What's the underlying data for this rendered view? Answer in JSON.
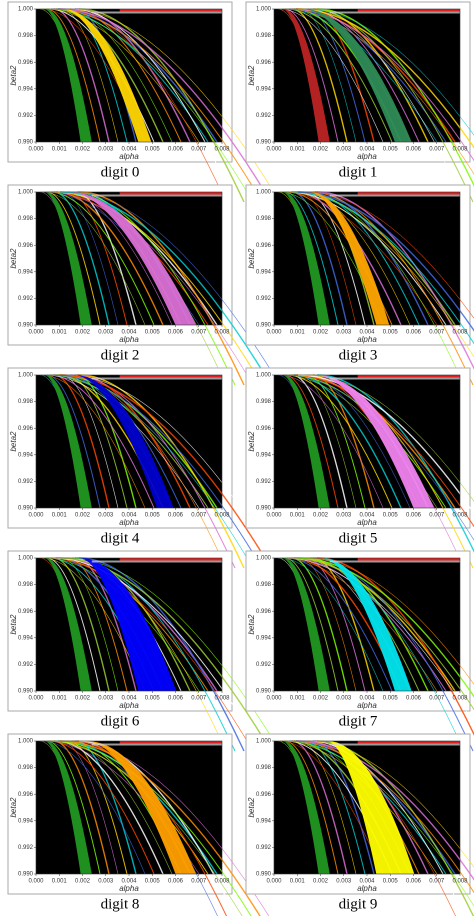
{
  "chart_data": [
    {
      "type": "region",
      "title": "digit 0",
      "x_label": "alpha",
      "y_label": "beta2",
      "xlim": [
        0,
        0.008
      ],
      "ylim": [
        0.99,
        1.0
      ],
      "xticks": [
        {
          "value": 0,
          "label": "0.000"
        },
        0.001,
        0.002,
        0.003,
        0.004,
        0.005,
        0.006,
        0.007,
        0.008
      ],
      "yticks": [
        {
          "value": 0.99,
          "label": "0.990"
        },
        0.992,
        0.994,
        0.996,
        0.998,
        {
          "value": 1.0,
          "label": "1.000"
        }
      ]
    },
    {
      "type": "region",
      "title": "digit 1",
      "x_label": "alpha",
      "y_label": "beta2",
      "xlim": [
        0,
        0.008
      ],
      "ylim": [
        0.99,
        1.0
      ],
      "xticks": [
        {
          "value": 0,
          "label": "0.000"
        },
        0.001,
        0.002,
        0.003,
        0.004,
        0.005,
        0.006,
        0.007,
        0.008
      ],
      "yticks": [
        {
          "value": 0.99,
          "label": "0.990"
        },
        0.992,
        0.994,
        0.996,
        0.998,
        {
          "value": 1.0,
          "label": "1.000"
        }
      ]
    },
    {
      "type": "region",
      "title": "digit 2",
      "x_label": "alpha",
      "y_label": "beta2",
      "xlim": [
        0,
        0.008
      ],
      "ylim": [
        0.99,
        1.0
      ],
      "xticks": [
        {
          "value": 0,
          "label": "0.000"
        },
        0.001,
        0.002,
        0.003,
        0.004,
        0.005,
        0.006,
        0.007,
        0.008
      ],
      "yticks": [
        {
          "value": 0.99,
          "label": "0.990"
        },
        0.992,
        0.994,
        0.996,
        0.998,
        {
          "value": 1.0,
          "label": "1.000"
        }
      ]
    },
    {
      "type": "region",
      "title": "digit 3",
      "x_label": "alpha",
      "y_label": "beta2",
      "xlim": [
        0,
        0.008
      ],
      "ylim": [
        0.99,
        1.0
      ],
      "xticks": [
        {
          "value": 0,
          "label": "0.000"
        },
        0.001,
        0.002,
        0.003,
        0.004,
        0.005,
        0.006,
        0.007,
        0.008
      ],
      "yticks": [
        {
          "value": 0.99,
          "label": "0.990"
        },
        0.992,
        0.994,
        0.996,
        0.998,
        {
          "value": 1.0,
          "label": "1.000"
        }
      ]
    },
    {
      "type": "region",
      "title": "digit 4",
      "x_label": "alpha",
      "y_label": "beta2",
      "xlim": [
        0,
        0.008
      ],
      "ylim": [
        0.99,
        1.0
      ],
      "xticks": [
        {
          "value": 0,
          "label": "0.000"
        },
        0.001,
        0.002,
        0.003,
        0.004,
        0.005,
        0.006,
        0.007,
        0.008
      ],
      "yticks": [
        {
          "value": 0.99,
          "label": "0.990"
        },
        0.992,
        0.994,
        0.996,
        0.998,
        {
          "value": 1.0,
          "label": "1.000"
        }
      ]
    },
    {
      "type": "region",
      "title": "digit 5",
      "x_label": "alpha",
      "y_label": "beta2",
      "xlim": [
        0,
        0.008
      ],
      "ylim": [
        0.99,
        1.0
      ],
      "xticks": [
        {
          "value": 0,
          "label": "0.000"
        },
        0.001,
        0.002,
        0.003,
        0.004,
        0.005,
        0.006,
        0.007,
        0.008
      ],
      "yticks": [
        {
          "value": 0.99,
          "label": "0.990"
        },
        0.992,
        0.994,
        0.996,
        0.998,
        {
          "value": 1.0,
          "label": "1.000"
        }
      ]
    },
    {
      "type": "region",
      "title": "digit 6",
      "x_label": "alpha",
      "y_label": "beta2",
      "xlim": [
        0,
        0.008
      ],
      "ylim": [
        0.99,
        1.0
      ],
      "xticks": [
        {
          "value": 0,
          "label": "0.000"
        },
        0.001,
        0.002,
        0.003,
        0.004,
        0.005,
        0.006,
        0.007,
        0.008
      ],
      "yticks": [
        {
          "value": 0.99,
          "label": "0.990"
        },
        0.992,
        0.994,
        0.996,
        0.998,
        {
          "value": 1.0,
          "label": "1.000"
        }
      ]
    },
    {
      "type": "region",
      "title": "digit 7",
      "x_label": "alpha",
      "y_label": "beta2",
      "xlim": [
        0,
        0.008
      ],
      "ylim": [
        0.99,
        1.0
      ],
      "xticks": [
        {
          "value": 0,
          "label": "0.000"
        },
        0.001,
        0.002,
        0.003,
        0.004,
        0.005,
        0.006,
        0.007,
        0.008
      ],
      "yticks": [
        {
          "value": 0.99,
          "label": "0.990"
        },
        0.992,
        0.994,
        0.996,
        0.998,
        {
          "value": 1.0,
          "label": "1.000"
        }
      ]
    },
    {
      "type": "region",
      "title": "digit 8",
      "x_label": "alpha",
      "y_label": "beta2",
      "xlim": [
        0,
        0.008
      ],
      "ylim": [
        0.99,
        1.0
      ],
      "xticks": [
        {
          "value": 0,
          "label": "0.000"
        },
        0.001,
        0.002,
        0.003,
        0.004,
        0.005,
        0.006,
        0.007,
        0.008
      ],
      "yticks": [
        {
          "value": 0.99,
          "label": "0.990"
        },
        0.992,
        0.994,
        0.996,
        0.998,
        {
          "value": 1.0,
          "label": "1.000"
        }
      ]
    },
    {
      "type": "region",
      "title": "digit 9",
      "x_label": "alpha",
      "y_label": "beta2",
      "xlim": [
        0,
        0.008
      ],
      "ylim": [
        0.99,
        1.0
      ],
      "xticks": [
        {
          "value": 0,
          "label": "0.000"
        },
        0.001,
        0.002,
        0.003,
        0.004,
        0.005,
        0.006,
        0.007,
        0.008
      ],
      "yticks": [
        {
          "value": 0.99,
          "label": "0.990"
        },
        0.992,
        0.994,
        0.996,
        0.998,
        {
          "value": 1.0,
          "label": "1.000"
        }
      ]
    }
  ]
}
